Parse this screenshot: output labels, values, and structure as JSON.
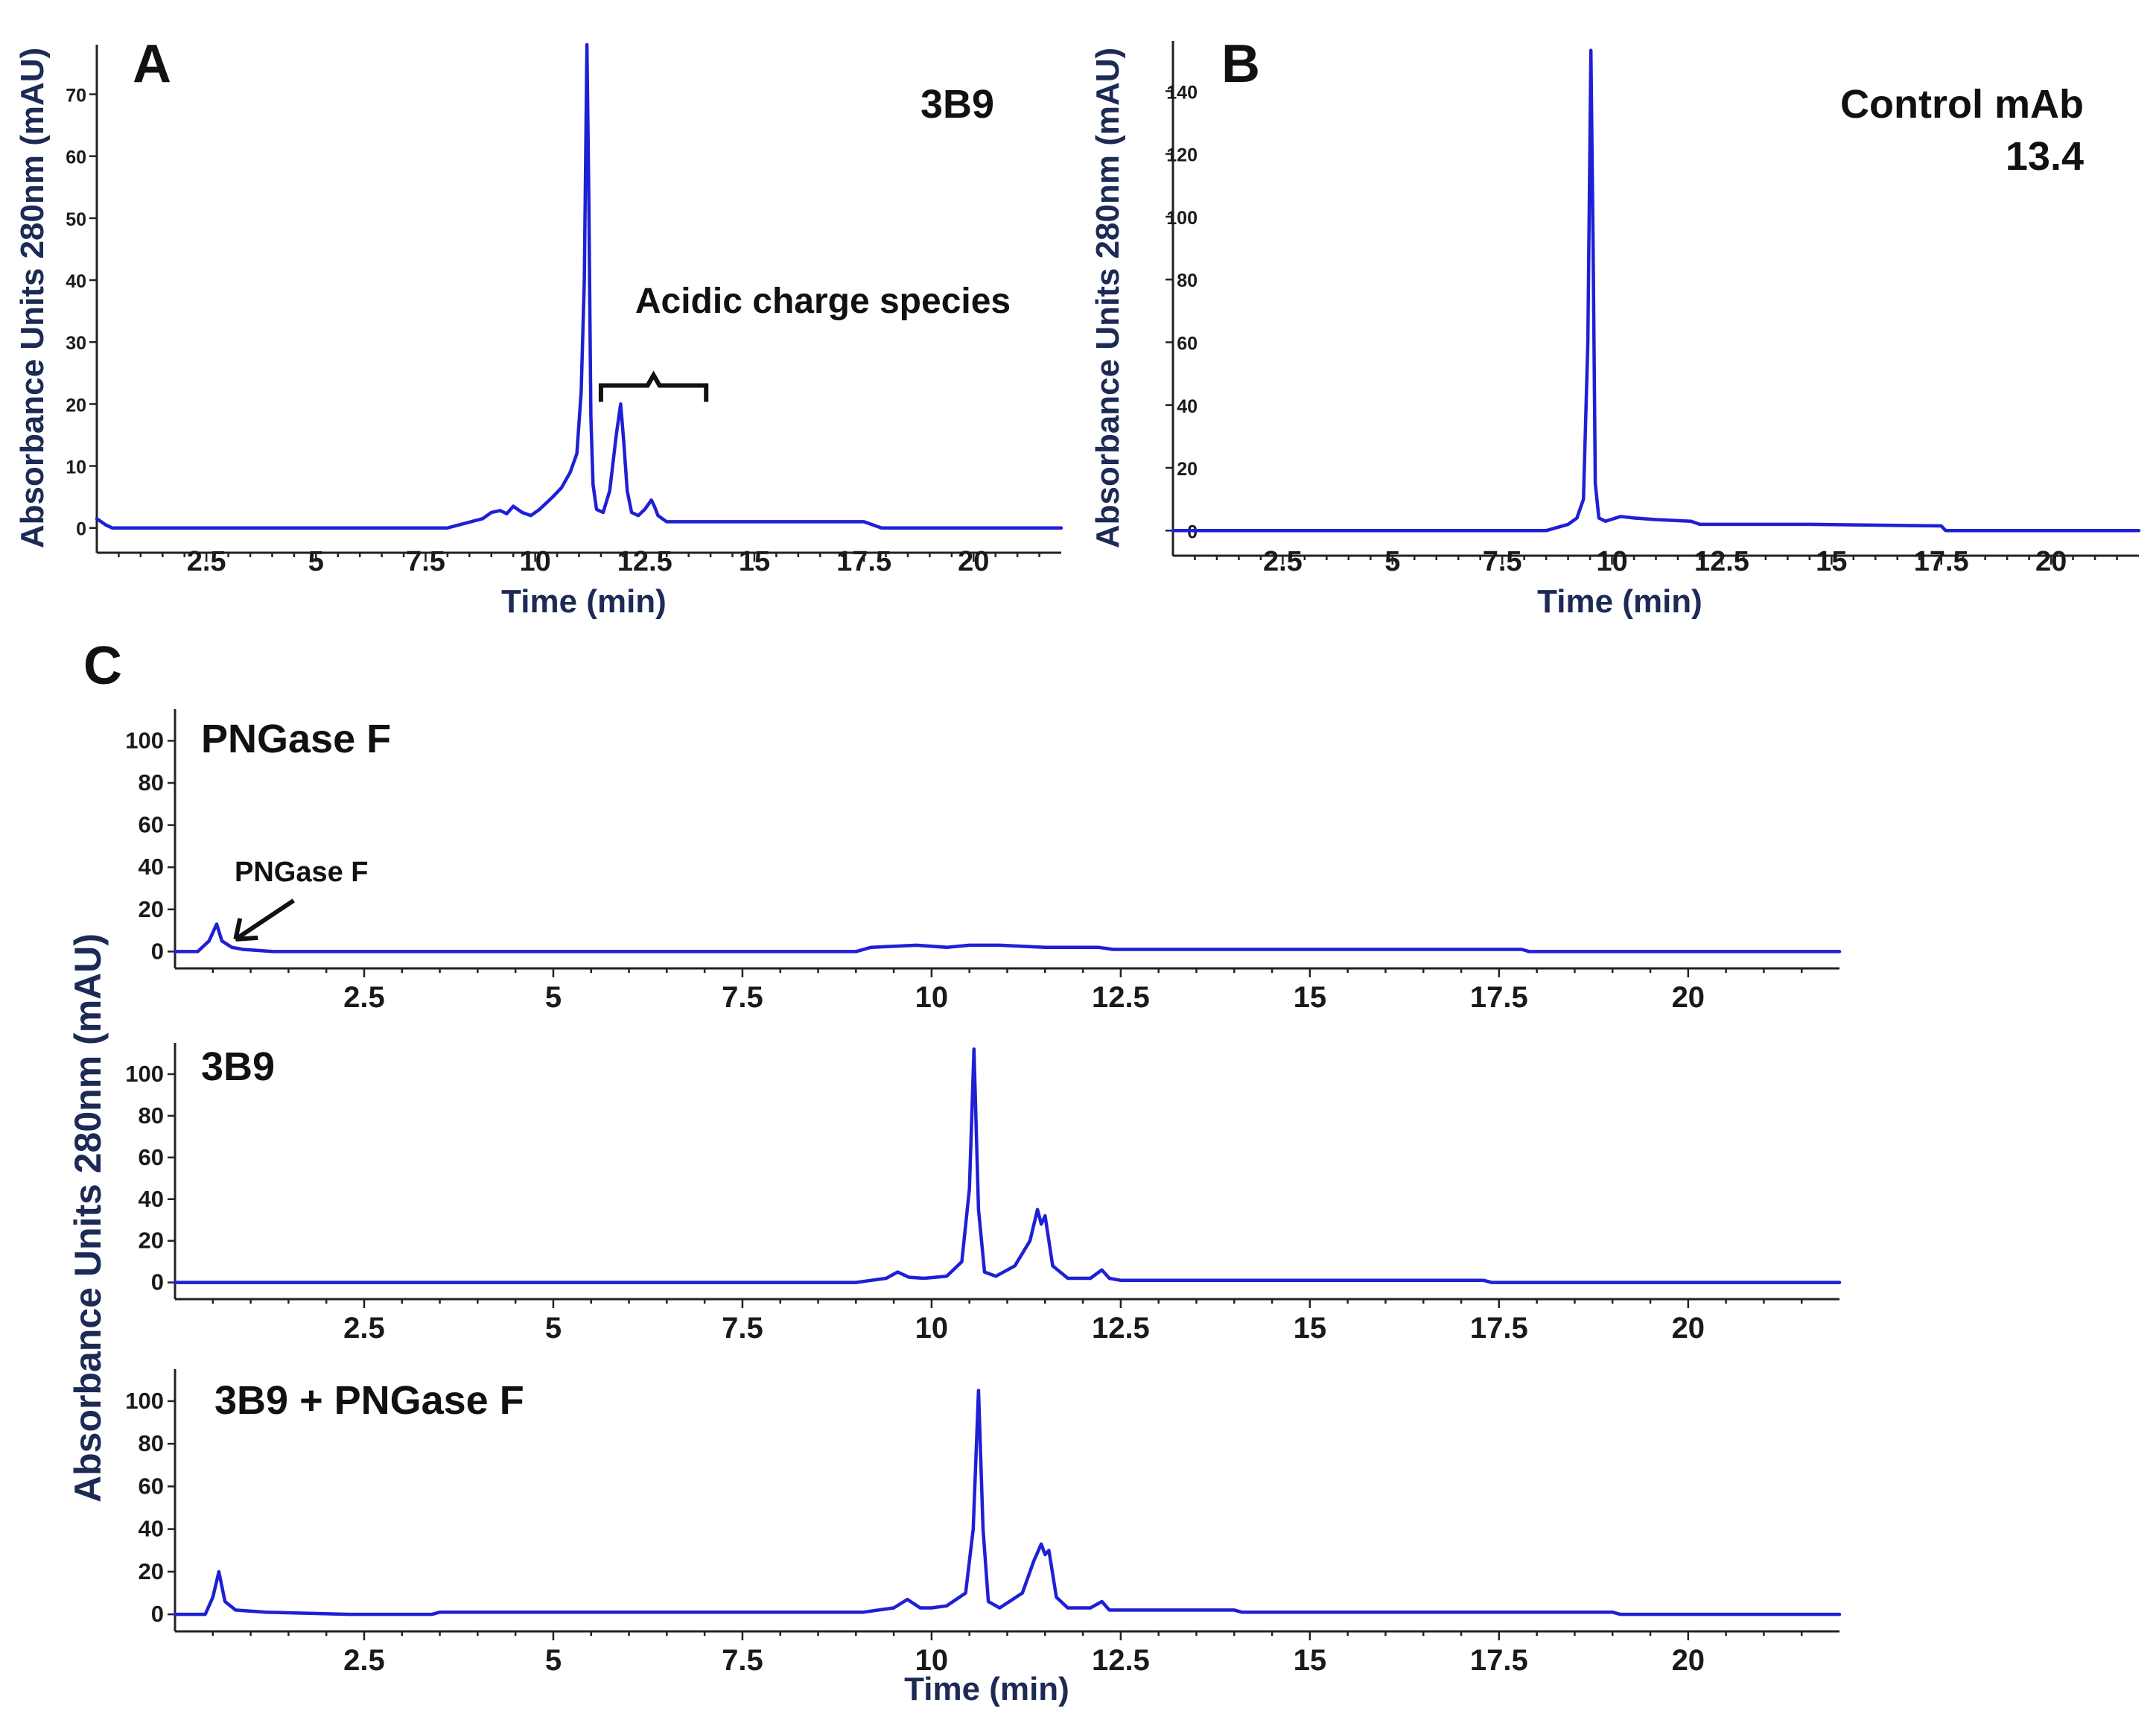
{
  "colors": {
    "trace": "#1f1fd6",
    "axis_label": "#1c2a55"
  },
  "chart_data": [
    {
      "id": "A",
      "type": "line",
      "panel_label": "A",
      "label_lines": [
        "3B9"
      ],
      "xlabel": "Time (min)",
      "ylabel": "Absorbance Units 280nm (mAU)",
      "xlim": [
        0,
        22
      ],
      "ylim": [
        -4,
        78
      ],
      "xticks": [
        "2.5",
        "5",
        "7.5",
        "10",
        "12.5",
        "15",
        "17.5",
        "20"
      ],
      "xtick_values": [
        2.5,
        5,
        7.5,
        10,
        12.5,
        15,
        17.5,
        20
      ],
      "yticks": [
        "0",
        "10",
        "20",
        "30",
        "40",
        "50",
        "60",
        "70"
      ],
      "ytick_values": [
        0,
        10,
        20,
        30,
        40,
        50,
        60,
        70
      ],
      "annotation": {
        "text": "Acidic charge species",
        "x_start": 11.5,
        "x_end": 13.9,
        "y": 23
      },
      "series": [
        {
          "name": "3B9",
          "x": [
            0,
            0.1,
            0.2,
            0.35,
            0.5,
            0.6,
            1,
            2,
            4,
            6,
            8,
            8.8,
            9.0,
            9.2,
            9.35,
            9.5,
            9.7,
            9.9,
            10.1,
            10.4,
            10.6,
            10.8,
            10.95,
            11.05,
            11.12,
            11.18,
            11.22,
            11.27,
            11.32,
            11.4,
            11.55,
            11.7,
            11.85,
            11.95,
            12.02,
            12.1,
            12.2,
            12.35,
            12.5,
            12.65,
            12.72,
            12.8,
            12.9,
            13.0,
            15,
            17.5,
            17.9,
            18.2,
            22
          ],
          "values": [
            1.5,
            1,
            0.5,
            0,
            0,
            0,
            0,
            0,
            0,
            0,
            0,
            1.5,
            2.5,
            2.8,
            2.3,
            3.5,
            2.5,
            2,
            3,
            5,
            6.5,
            9,
            12,
            22,
            40,
            78,
            55,
            18,
            7,
            3,
            2.5,
            6,
            15,
            20,
            14,
            6,
            2.5,
            2,
            3,
            4.5,
            3.5,
            2,
            1.5,
            1,
            1,
            1,
            0,
            0,
            0
          ]
        }
      ]
    },
    {
      "id": "B",
      "type": "line",
      "panel_label": "B",
      "label_lines": [
        "Control mAb",
        "13.4"
      ],
      "xlabel": "Time (min)",
      "ylabel": "Absorbance Units 280nm (mAU)",
      "xlim": [
        0,
        22
      ],
      "ylim": [
        -8,
        156
      ],
      "xticks": [
        "2.5",
        "5",
        "7.5",
        "10",
        "12.5",
        "15",
        "17.5",
        "20"
      ],
      "xtick_values": [
        2.5,
        5,
        7.5,
        10,
        12.5,
        15,
        17.5,
        20
      ],
      "yticks": [
        "0",
        "20",
        "40",
        "60",
        "80",
        "100",
        "120",
        "140"
      ],
      "ytick_values": [
        0,
        20,
        40,
        60,
        80,
        100,
        120,
        140
      ],
      "series": [
        {
          "name": "Control mAb 13.4",
          "x": [
            0,
            1,
            5,
            8.5,
            9.0,
            9.2,
            9.35,
            9.45,
            9.52,
            9.57,
            9.62,
            9.7,
            9.85,
            10.2,
            10.5,
            11,
            11.8,
            12,
            14.5,
            17.5,
            17.6,
            22
          ],
          "values": [
            0,
            0,
            0,
            0,
            2,
            4,
            10,
            60,
            153,
            90,
            15,
            4,
            3,
            4.5,
            4,
            3.5,
            3,
            2,
            2,
            1.5,
            0,
            0
          ]
        }
      ]
    },
    {
      "id": "C1",
      "type": "line",
      "panel_label": "C",
      "label_lines": [
        "PNGase F"
      ],
      "xlabel": "",
      "ylabel": "Absorbance Units 280nm (mAU)",
      "xlim": [
        0,
        22
      ],
      "ylim": [
        -8,
        115
      ],
      "xticks": [
        "2.5",
        "5",
        "7.5",
        "10",
        "12.5",
        "15",
        "17.5",
        "20"
      ],
      "xtick_values": [
        2.5,
        5,
        7.5,
        10,
        12.5,
        15,
        17.5,
        20
      ],
      "yticks": [
        "0",
        "20",
        "40",
        "60",
        "80",
        "100"
      ],
      "ytick_values": [
        0,
        20,
        40,
        60,
        80,
        100
      ],
      "annotation": {
        "text": "PNGase F",
        "arrow_to_x": 0.8,
        "arrow_to_y": 3
      },
      "series": [
        {
          "name": "PNGase F",
          "x": [
            0,
            0.3,
            0.45,
            0.55,
            0.62,
            0.75,
            0.9,
            1.3,
            5,
            9,
            9.2,
            9.8,
            10.2,
            10.5,
            10.9,
            11.5,
            12.2,
            12.4,
            17.8,
            17.9,
            22
          ],
          "values": [
            0,
            0,
            5,
            13,
            5,
            2,
            1,
            0,
            0,
            0,
            2,
            3,
            2,
            3,
            3,
            2,
            2,
            1,
            1,
            0,
            0
          ]
        }
      ]
    },
    {
      "id": "C2",
      "type": "line",
      "panel_label": "",
      "label_lines": [
        "3B9"
      ],
      "xlabel": "",
      "ylabel": "",
      "xlim": [
        0,
        22
      ],
      "ylim": [
        -8,
        115
      ],
      "xticks": [
        "2.5",
        "5",
        "7.5",
        "10",
        "12.5",
        "15",
        "17.5",
        "20"
      ],
      "xtick_values": [
        2.5,
        5,
        7.5,
        10,
        12.5,
        15,
        17.5,
        20
      ],
      "yticks": [
        "0",
        "20",
        "40",
        "60",
        "80",
        "100"
      ],
      "ytick_values": [
        0,
        20,
        40,
        60,
        80,
        100
      ],
      "series": [
        {
          "name": "3B9",
          "x": [
            0,
            5,
            9,
            9.2,
            9.4,
            9.55,
            9.7,
            9.9,
            10.2,
            10.4,
            10.5,
            10.56,
            10.62,
            10.7,
            10.85,
            11.1,
            11.3,
            11.4,
            11.45,
            11.5,
            11.6,
            11.8,
            12.1,
            12.25,
            12.35,
            12.5,
            17.3,
            17.4,
            22
          ],
          "values": [
            0,
            0,
            0,
            1,
            2,
            5,
            2.5,
            2,
            3,
            10,
            45,
            112,
            35,
            5,
            3,
            8,
            20,
            35,
            28,
            32,
            8,
            2,
            2,
            6,
            2,
            1,
            1,
            0,
            0
          ]
        }
      ]
    },
    {
      "id": "C3",
      "type": "line",
      "panel_label": "",
      "label_lines": [
        "3B9 + PNGase F"
      ],
      "xlabel": "Time (min)",
      "ylabel": "",
      "xlim": [
        0,
        22
      ],
      "ylim": [
        -8,
        115
      ],
      "xticks": [
        "2.5",
        "5",
        "7.5",
        "10",
        "12.5",
        "15",
        "17.5",
        "20"
      ],
      "xtick_values": [
        2.5,
        5,
        7.5,
        10,
        12.5,
        15,
        17.5,
        20
      ],
      "yticks": [
        "0",
        "20",
        "40",
        "60",
        "80",
        "100"
      ],
      "ytick_values": [
        0,
        20,
        40,
        60,
        80,
        100
      ],
      "series": [
        {
          "name": "3B9 + PNGase F",
          "x": [
            0,
            0.4,
            0.5,
            0.58,
            0.66,
            0.8,
            1.2,
            2.3,
            3.4,
            3.5,
            8,
            9.1,
            9.5,
            9.68,
            9.85,
            10.0,
            10.2,
            10.45,
            10.55,
            10.62,
            10.68,
            10.75,
            10.9,
            11.2,
            11.35,
            11.45,
            11.5,
            11.55,
            11.65,
            11.8,
            12.1,
            12.25,
            12.35,
            12.5,
            14,
            14.1,
            19,
            19.1,
            22
          ],
          "values": [
            0,
            0,
            8,
            20,
            6,
            2,
            1,
            0,
            0,
            1,
            1,
            1,
            3,
            7,
            3,
            3,
            4,
            10,
            40,
            105,
            40,
            6,
            3,
            10,
            25,
            33,
            28,
            30,
            8,
            3,
            3,
            6,
            2,
            2,
            2,
            1,
            1,
            0,
            0
          ]
        }
      ]
    }
  ]
}
